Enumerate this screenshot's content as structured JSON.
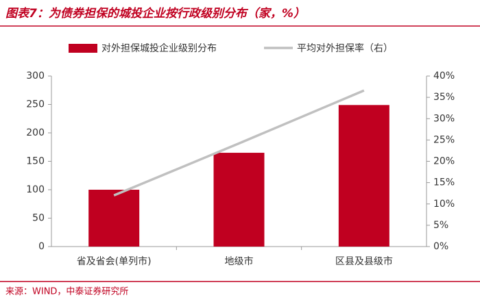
{
  "chart_data": {
    "type": "bar_line",
    "title": "图表7：为债券担保的城投企业按行政级别分布（家，%）",
    "source": "来源：WIND，中泰证券研究所",
    "categories": [
      "省及省会(单列市)",
      "地级市",
      "区县及县级市"
    ],
    "series": [
      {
        "name": "对外担保城投企业级别分布",
        "type": "bar",
        "color": "#c00020",
        "values": [
          100,
          165,
          249
        ]
      },
      {
        "name": "平均对外担保率（右）",
        "type": "line",
        "axis": "y2",
        "color": "#c0c0c0",
        "values": [
          12,
          24.2,
          36.6
        ]
      }
    ],
    "ylim": [
      0,
      300
    ],
    "yticks": [
      0,
      50,
      100,
      150,
      200,
      250,
      300
    ],
    "y2lim": [
      0,
      40
    ],
    "y2ticks": [
      {
        "value": 0,
        "label": "0%"
      },
      {
        "value": 5,
        "label": "5%"
      },
      {
        "value": 10,
        "label": "10%"
      },
      {
        "value": 15,
        "label": "15%"
      },
      {
        "value": 20,
        "label": "20%"
      },
      {
        "value": 25,
        "label": "25%"
      },
      {
        "value": 30,
        "label": "30%"
      },
      {
        "value": 35,
        "label": "35%"
      },
      {
        "value": 40,
        "label": "40%"
      }
    ],
    "grid": false,
    "legend": "top"
  }
}
